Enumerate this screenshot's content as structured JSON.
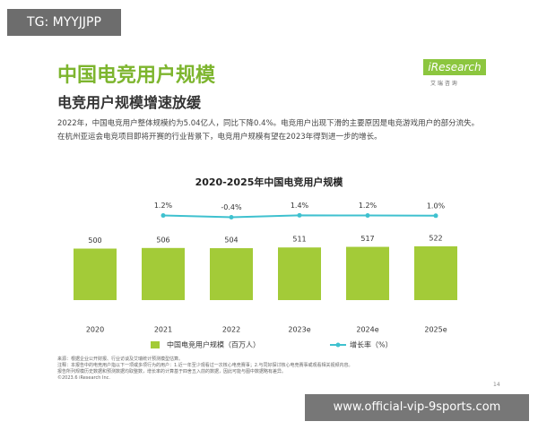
{
  "tag": "TG: MYYJJPP",
  "header": {
    "title": "中国电竞用户规模",
    "subtitle": "电竞用户规模增速放缓",
    "paragraph": "2022年，中国电竞用户整体规模约为5.04亿人，同比下降0.4%。电竞用户出现下滑的主要原因是电竞游戏用户的部分流失。在杭州亚运会电竞项目即将开赛的行业背景下，电竞用户规模有望在2023年得到进一步的增长。",
    "logo": "iResearch",
    "logo_sub": "艾 瑞 咨 询"
  },
  "chart_data": {
    "type": "bar",
    "title": "2020-2025年中国电竞用户规模",
    "categories": [
      "2020",
      "2021",
      "2022",
      "2023e",
      "2024e",
      "2025e"
    ],
    "series": [
      {
        "name": "中国电竞用户规模（百万人）",
        "type": "bar",
        "color": "#a3cb38",
        "values": [
          500,
          506,
          504,
          511,
          517,
          522
        ]
      },
      {
        "name": "增长率（%）",
        "type": "line",
        "color": "#3fc1cf",
        "values": [
          null,
          1.2,
          -0.4,
          1.4,
          1.2,
          1.0
        ],
        "value_labels": [
          null,
          "1.2%",
          "-0.4%",
          "1.4%",
          "1.2%",
          "1.0%"
        ]
      }
    ]
  },
  "footer": {
    "notes": [
      "来源：根据企业公开财报、行业访谈及艾瑞统计预测模型估算。",
      "注释：本报告中的电竞用户指以下一项或多项行为的用户：1.近一年至少观看过一次核心电竞赛事；2.与同好探讨核心电竞赛事或观看相关视频内容。",
      "报告所列规模历史数据和预测数据均取整数，增长率的计算基于四舍五入前的数据，因此可能与图中数据略有差异。"
    ],
    "copyright": "©2023.6 iResearch Inc.",
    "page": "14"
  },
  "watermark": "www.official-vip-9sports.com"
}
